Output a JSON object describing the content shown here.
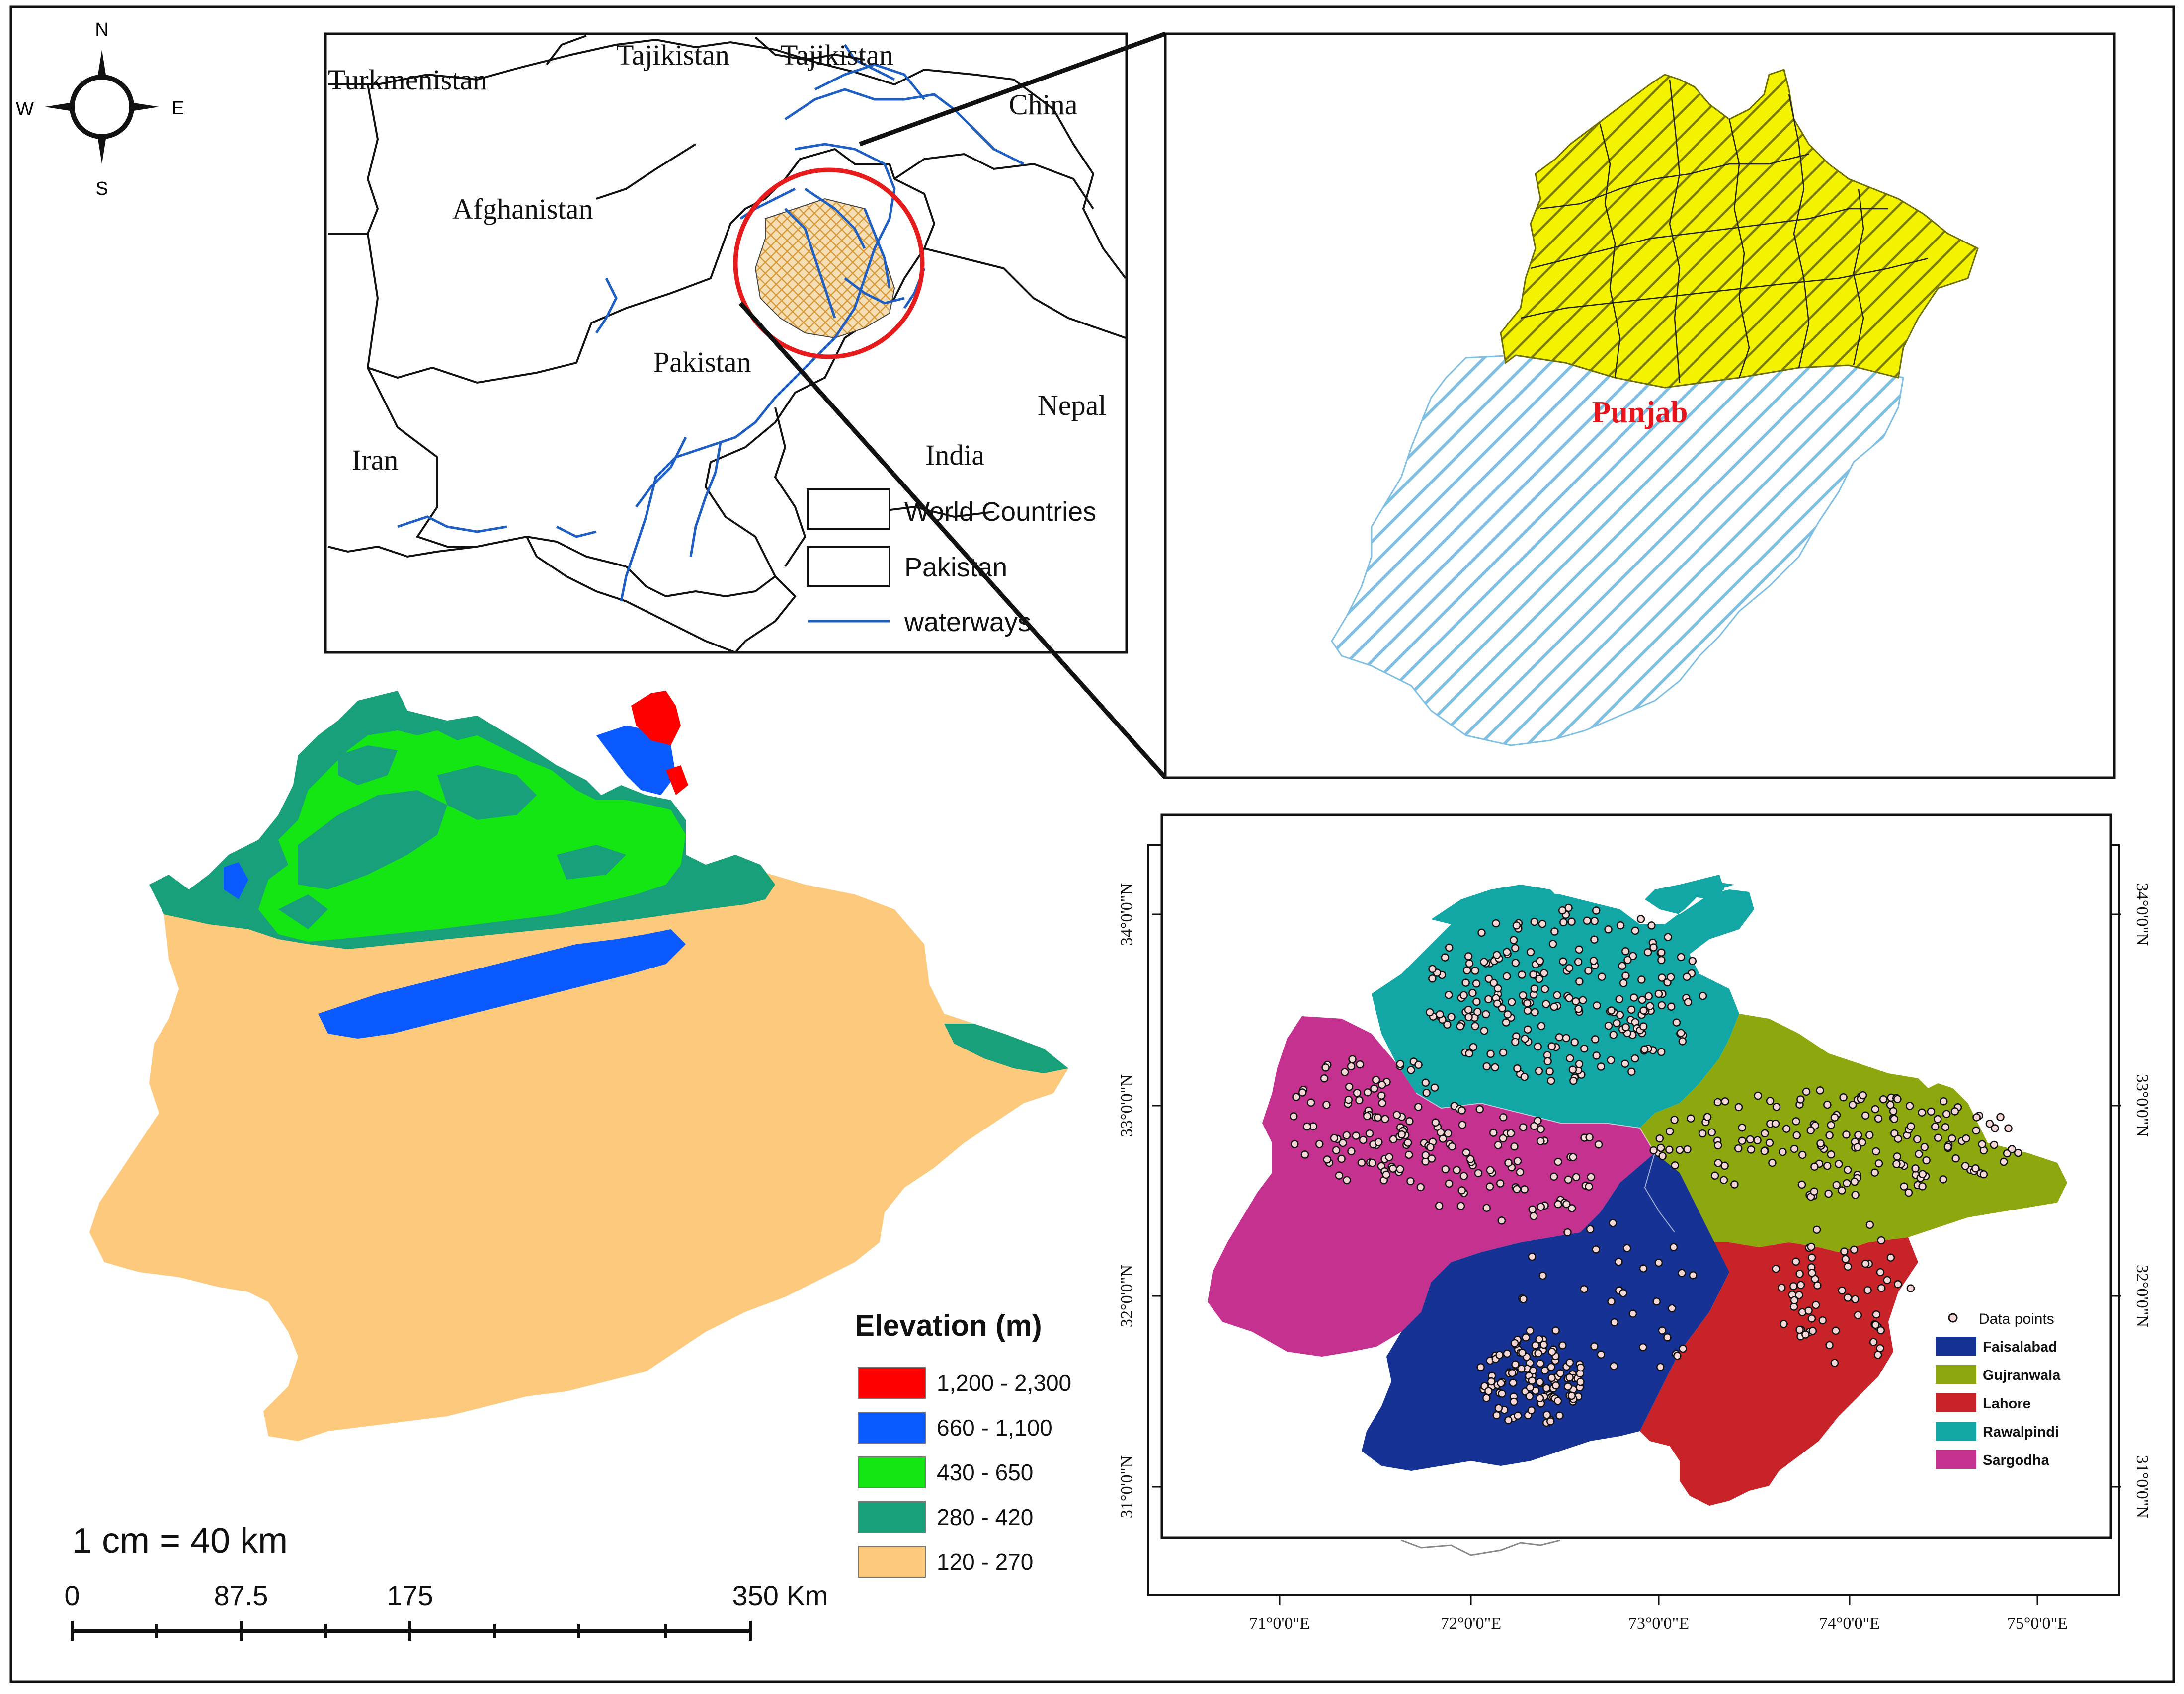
{
  "compass": {
    "north": "N",
    "south": "S",
    "east": "E",
    "west": "W"
  },
  "inset_map": {
    "labels": {
      "turkmenistan": "Turkmenistan",
      "tajikistan_1": "Tajikistan",
      "tajikistan_2": "Tajikistan",
      "china": "China",
      "afghanistan": "Afghanistan",
      "pakistan": "Pakistan",
      "nepal": "Nepal",
      "iran": "Iran",
      "india": "India"
    },
    "legend": [
      {
        "label": "World Countries",
        "symbol": "box"
      },
      {
        "label": "Pakistan",
        "symbol": "box"
      },
      {
        "label": "waterways",
        "symbol": "line",
        "color": "#1f5fc4"
      }
    ]
  },
  "province_map": {
    "label": "Punjab",
    "label_color": "#e8141c",
    "north_fill": "#e6e61e",
    "south_fill": "#9fd0ea"
  },
  "elevation_map": {
    "legend_title": "Elevation (m)",
    "classes": [
      {
        "label": "1,200 - 2,300",
        "color": "#ff0000"
      },
      {
        "label": "660 - 1,100",
        "color": "#0a5aff"
      },
      {
        "label": "430 - 650",
        "color": "#14e614"
      },
      {
        "label": "280 - 420",
        "color": "#17a07a"
      },
      {
        "label": "120 - 270",
        "color": "#fcc97d"
      }
    ],
    "scale_text": "1 cm = 40 km",
    "scale_ticks": [
      "0",
      "87.5",
      "175",
      "350 Km"
    ]
  },
  "division_map": {
    "lat_labels": [
      "34°0'0\"N",
      "33°0'0\"N",
      "32°0'0\"N",
      "31°0'0\"N"
    ],
    "lon_labels": [
      "71°0'0\"E",
      "72°0'0\"E",
      "73°0'0\"E",
      "74°0'0\"E",
      "75°0'0\"E"
    ],
    "legend": [
      {
        "label": "Data points",
        "symbol": "point"
      },
      {
        "label": "Faisalabad",
        "color": "#163294"
      },
      {
        "label": "Gujranwala",
        "color": "#8da80e"
      },
      {
        "label": "Lahore",
        "color": "#c9232a"
      },
      {
        "label": "Rawalpindi",
        "color": "#12a6a4"
      },
      {
        "label": "Sargodha",
        "color": "#c4318e"
      }
    ]
  }
}
